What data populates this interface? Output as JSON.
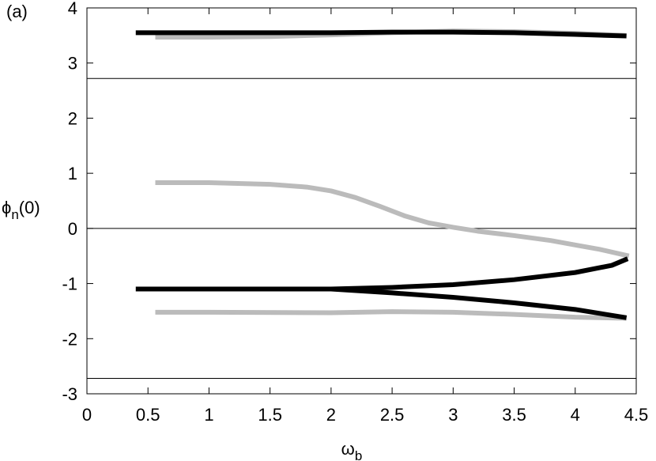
{
  "chart_data": {
    "type": "line",
    "panel_label": "(a)",
    "ylabel": {
      "base": "ϕ",
      "sub": "n",
      "rest": "(0)"
    },
    "xlabel": {
      "base": "ω",
      "sub": "b"
    },
    "xlim": [
      0,
      4.5
    ],
    "xticks": [
      0,
      0.5,
      1,
      1.5,
      2,
      2.5,
      3,
      3.5,
      4,
      4.5
    ],
    "ylim": [
      -3,
      4
    ],
    "yticks": [
      -3,
      -2,
      -1,
      0,
      1,
      2,
      3,
      4
    ],
    "hlines": [
      2.72,
      0,
      -2.72
    ],
    "series": [
      {
        "color": "#bbbbbb",
        "x": [
          0.56,
          1,
          1.5,
          2,
          2.5,
          3,
          3.5,
          4,
          4.42
        ],
        "values": [
          3.47,
          3.47,
          3.48,
          3.51,
          3.55,
          3.58,
          3.57,
          3.54,
          3.5
        ]
      },
      {
        "color": "#bbbbbb",
        "x": [
          0.56,
          1,
          1.5,
          1.8,
          2,
          2.2,
          2.4,
          2.6,
          2.8,
          3,
          3.2,
          3.5,
          3.8,
          4,
          4.2,
          4.44
        ],
        "values": [
          0.83,
          0.83,
          0.8,
          0.75,
          0.68,
          0.56,
          0.4,
          0.23,
          0.1,
          0.02,
          -0.05,
          -0.13,
          -0.22,
          -0.3,
          -0.38,
          -0.5
        ]
      },
      {
        "color": "#bbbbbb",
        "x": [
          0.56,
          1,
          2,
          2.5,
          3,
          3.5,
          4,
          4.42
        ],
        "values": [
          -1.52,
          -1.52,
          -1.53,
          -1.51,
          -1.52,
          -1.56,
          -1.61,
          -1.63
        ]
      },
      {
        "color": "#000000",
        "x": [
          0.4,
          1,
          2,
          2.5,
          3,
          3.5,
          4,
          4.42
        ],
        "values": [
          3.55,
          3.55,
          3.55,
          3.56,
          3.56,
          3.55,
          3.52,
          3.49
        ]
      },
      {
        "color": "#000000",
        "x": [
          0.4,
          1,
          2,
          2.5,
          3,
          3.5,
          4,
          4.3,
          4.43
        ],
        "values": [
          -1.1,
          -1.1,
          -1.1,
          -1.07,
          -1.02,
          -0.93,
          -0.8,
          -0.67,
          -0.55
        ]
      },
      {
        "color": "#000000",
        "x": [
          2,
          2.5,
          3,
          3.5,
          4,
          4.42
        ],
        "values": [
          -1.1,
          -1.17,
          -1.25,
          -1.35,
          -1.47,
          -1.62
        ]
      }
    ]
  }
}
